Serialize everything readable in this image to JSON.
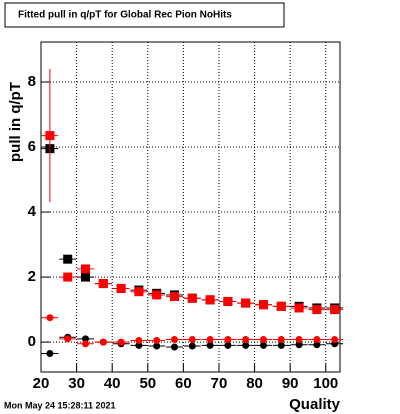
{
  "chart_data": {
    "type": "scatter",
    "title": "Fitted pull in q/pT for Global Rec Pion NoHits",
    "xlabel": "Quality",
    "ylabel": "pull in q/pT",
    "footer": "Mon May 24 15:28:11 2021",
    "x": [
      22.5,
      27.5,
      32.5,
      37.5,
      42.5,
      47.5,
      52.5,
      57.5,
      62.5,
      67.5,
      72.5,
      77.5,
      82.5,
      87.5,
      92.5,
      97.5,
      102.5
    ],
    "xlim": [
      20,
      104
    ],
    "xticks": [
      20,
      30,
      40,
      50,
      60,
      70,
      80,
      90,
      100
    ],
    "ylim": [
      -0.92,
      9.23
    ],
    "yticks": [
      0,
      2,
      4,
      6,
      8
    ],
    "grid": true,
    "series": [
      {
        "color": "#000000",
        "marker": "square",
        "values": [
          5.95,
          2.55,
          2.0,
          1.8,
          1.65,
          1.6,
          1.5,
          1.45,
          1.35,
          1.3,
          1.25,
          1.2,
          1.15,
          1.1,
          1.1,
          1.05,
          1.05
        ]
      },
      {
        "color": "#ff0000",
        "marker": "square",
        "values": [
          6.35,
          2.0,
          2.25,
          1.8,
          1.65,
          1.55,
          1.45,
          1.4,
          1.35,
          1.3,
          1.25,
          1.2,
          1.15,
          1.1,
          1.05,
          1.0,
          1.0
        ],
        "errors": [
          2.05,
          0.1,
          0.08,
          0.06,
          0.05,
          0.05,
          0.05,
          0.05,
          0.05,
          0.05,
          0.05,
          0.05,
          0.05,
          0.05,
          0.05,
          0.05,
          0.05
        ]
      },
      {
        "color": "#000000",
        "marker": "circle",
        "values": [
          -0.35,
          0.15,
          0.1,
          0.0,
          -0.05,
          -0.1,
          -0.12,
          -0.15,
          -0.12,
          -0.1,
          -0.1,
          -0.1,
          -0.1,
          -0.1,
          -0.08,
          -0.08,
          -0.05
        ]
      },
      {
        "color": "#ff0000",
        "marker": "circle",
        "values": [
          0.75,
          0.1,
          -0.05,
          0.0,
          0.0,
          0.05,
          0.05,
          0.08,
          0.08,
          0.08,
          0.08,
          0.08,
          0.08,
          0.08,
          0.08,
          0.08,
          0.08
        ]
      }
    ]
  }
}
